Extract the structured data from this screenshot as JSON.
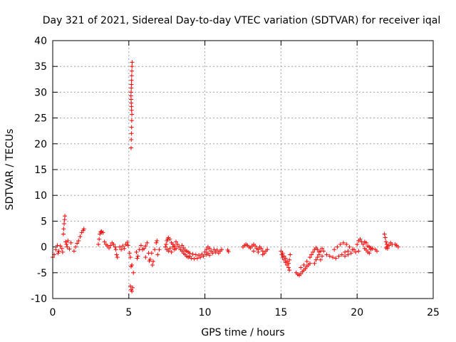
{
  "chart_data": {
    "type": "scatter",
    "title": "Day 321 of 2021, Sidereal Day-to-day VTEC variation (SDTVAR) for receiver iqal",
    "xlabel": "GPS time / hours",
    "ylabel": "SDTVAR / TECUs",
    "xlim": [
      0,
      25
    ],
    "ylim": [
      -10,
      40
    ],
    "xticks": [
      "0",
      "5",
      "10",
      "15",
      "20",
      "25"
    ],
    "yticks": [
      "-10",
      "-5",
      "0",
      "5",
      "10",
      "15",
      "20",
      "25",
      "30",
      "35",
      "40"
    ],
    "grid": true,
    "marker": "plus",
    "marker_color": "#ff0000",
    "series": [
      {
        "name": "SDTVAR",
        "points": [
          [
            0.0,
            -2.0
          ],
          [
            0.1,
            -1.5
          ],
          [
            0.2,
            -0.5
          ],
          [
            0.3,
            0.3
          ],
          [
            0.35,
            -1.2
          ],
          [
            0.4,
            -0.8
          ],
          [
            0.5,
            0.2
          ],
          [
            0.6,
            -0.3
          ],
          [
            0.65,
            -1.0
          ],
          [
            0.7,
            2.5
          ],
          [
            0.72,
            3.5
          ],
          [
            0.75,
            4.5
          ],
          [
            0.78,
            5.3
          ],
          [
            0.8,
            6.0
          ],
          [
            0.85,
            1.0
          ],
          [
            0.9,
            0.5
          ],
          [
            0.95,
            0.0
          ],
          [
            1.0,
            1.2
          ],
          [
            1.1,
            -0.4
          ],
          [
            1.2,
            0.8
          ],
          [
            1.4,
            -0.8
          ],
          [
            1.5,
            0.0
          ],
          [
            1.6,
            0.7
          ],
          [
            1.7,
            1.2
          ],
          [
            1.8,
            2.0
          ],
          [
            1.9,
            2.8
          ],
          [
            2.0,
            3.2
          ],
          [
            2.05,
            3.5
          ],
          [
            3.0,
            0.5
          ],
          [
            3.05,
            1.5
          ],
          [
            3.1,
            2.5
          ],
          [
            3.15,
            2.9
          ],
          [
            3.2,
            3.0
          ],
          [
            3.3,
            2.8
          ],
          [
            3.4,
            1.0
          ],
          [
            3.5,
            0.5
          ],
          [
            3.6,
            0.2
          ],
          [
            3.7,
            -0.2
          ],
          [
            3.8,
            0.3
          ],
          [
            3.9,
            0.8
          ],
          [
            4.0,
            0.5
          ],
          [
            4.1,
            0.0
          ],
          [
            4.15,
            -0.5
          ],
          [
            4.2,
            -1.5
          ],
          [
            4.25,
            -2.0
          ],
          [
            4.4,
            0.0
          ],
          [
            4.5,
            -0.5
          ],
          [
            4.6,
            0.2
          ],
          [
            4.7,
            -0.3
          ],
          [
            4.8,
            0.5
          ],
          [
            4.9,
            0.9
          ],
          [
            4.95,
            0.3
          ],
          [
            5.05,
            -1.2
          ],
          [
            5.1,
            -2.0
          ],
          [
            5.15,
            -3.8
          ],
          [
            5.2,
            -3.5
          ],
          [
            5.1,
            -7.6
          ],
          [
            5.15,
            -8.3
          ],
          [
            5.2,
            -8.6
          ],
          [
            5.25,
            -7.9
          ],
          [
            5.3,
            -5.0
          ],
          [
            5.15,
            19.2
          ],
          [
            5.16,
            20.8
          ],
          [
            5.17,
            22.0
          ],
          [
            5.18,
            23.2
          ],
          [
            5.19,
            24.5
          ],
          [
            5.2,
            25.7
          ],
          [
            5.18,
            26.5
          ],
          [
            5.17,
            27.2
          ],
          [
            5.16,
            27.9
          ],
          [
            5.15,
            28.6
          ],
          [
            5.14,
            29.3
          ],
          [
            5.15,
            30.0
          ],
          [
            5.16,
            30.8
          ],
          [
            5.17,
            31.5
          ],
          [
            5.18,
            32.3
          ],
          [
            5.19,
            33.2
          ],
          [
            5.2,
            34.1
          ],
          [
            5.21,
            35.0
          ],
          [
            5.22,
            35.8
          ],
          [
            5.5,
            -1.0
          ],
          [
            5.55,
            -2.2
          ],
          [
            5.6,
            -1.8
          ],
          [
            5.7,
            -0.5
          ],
          [
            5.8,
            0.3
          ],
          [
            5.9,
            -0.5
          ],
          [
            6.0,
            -0.3
          ],
          [
            6.1,
            0.2
          ],
          [
            6.2,
            0.8
          ],
          [
            6.3,
            -1.2
          ],
          [
            6.1,
            -2.0
          ],
          [
            6.35,
            -2.7
          ],
          [
            6.4,
            -2.4
          ],
          [
            6.5,
            -1.2
          ],
          [
            6.55,
            -3.5
          ],
          [
            6.6,
            -2.8
          ],
          [
            6.7,
            -0.5
          ],
          [
            6.8,
            0.8
          ],
          [
            6.85,
            1.2
          ],
          [
            6.9,
            -1.5
          ],
          [
            7.0,
            -0.5
          ],
          [
            7.4,
            0.0
          ],
          [
            7.45,
            0.5
          ],
          [
            7.5,
            1.2
          ],
          [
            7.55,
            1.5
          ],
          [
            7.6,
            1.8
          ],
          [
            7.7,
            1.5
          ],
          [
            7.8,
            0.8
          ],
          [
            7.9,
            0.5
          ],
          [
            8.0,
            0.2
          ],
          [
            8.1,
            -0.3
          ],
          [
            7.5,
            -0.5
          ],
          [
            7.6,
            -0.8
          ],
          [
            7.7,
            -0.3
          ],
          [
            7.8,
            -1.0
          ],
          [
            7.9,
            0.0
          ],
          [
            8.0,
            -0.5
          ],
          [
            8.1,
            1.0
          ],
          [
            8.2,
            0.5
          ],
          [
            8.3,
            0.0
          ],
          [
            8.4,
            -0.5
          ],
          [
            8.5,
            -0.8
          ],
          [
            8.6,
            -1.2
          ],
          [
            8.7,
            -1.5
          ],
          [
            8.8,
            -1.8
          ],
          [
            8.9,
            -2.0
          ],
          [
            9.0,
            -1.8
          ],
          [
            8.5,
            0.3
          ],
          [
            8.6,
            -0.2
          ],
          [
            8.7,
            -0.6
          ],
          [
            8.8,
            -0.8
          ],
          [
            8.9,
            -1.0
          ],
          [
            9.0,
            -1.2
          ],
          [
            9.2,
            -1.4
          ],
          [
            9.4,
            -1.5
          ],
          [
            9.6,
            -1.6
          ],
          [
            9.8,
            -1.4
          ],
          [
            9.1,
            -2.2
          ],
          [
            9.3,
            -2.3
          ],
          [
            9.5,
            -2.2
          ],
          [
            9.7,
            -2.0
          ],
          [
            9.9,
            -1.8
          ],
          [
            10.0,
            -1.0
          ],
          [
            10.1,
            -0.5
          ],
          [
            10.2,
            0.0
          ],
          [
            10.3,
            -0.3
          ],
          [
            10.4,
            -0.8
          ],
          [
            10.1,
            -1.5
          ],
          [
            10.2,
            -1.2
          ],
          [
            10.3,
            -1.6
          ],
          [
            10.5,
            -1.2
          ],
          [
            10.6,
            -0.5
          ],
          [
            10.7,
            -1.0
          ],
          [
            10.8,
            -0.6
          ],
          [
            10.9,
            -1.2
          ],
          [
            11.0,
            -0.8
          ],
          [
            11.1,
            -0.5
          ],
          [
            11.5,
            -0.6
          ],
          [
            11.55,
            -0.9
          ],
          [
            12.5,
            0.0
          ],
          [
            12.6,
            0.3
          ],
          [
            12.7,
            0.5
          ],
          [
            12.8,
            0.3
          ],
          [
            12.9,
            0.0
          ],
          [
            13.0,
            -0.2
          ],
          [
            13.1,
            0.2
          ],
          [
            13.2,
            0.5
          ],
          [
            13.3,
            0.2
          ],
          [
            13.4,
            -0.3
          ],
          [
            13.5,
            -0.5
          ],
          [
            13.6,
            0.0
          ],
          [
            13.7,
            -0.3
          ],
          [
            13.8,
            -0.8
          ],
          [
            13.9,
            -1.2
          ],
          [
            14.0,
            -0.8
          ],
          [
            14.1,
            -0.5
          ],
          [
            13.2,
            -0.8
          ],
          [
            13.5,
            -1.0
          ],
          [
            13.8,
            -1.5
          ],
          [
            15.0,
            -0.8
          ],
          [
            15.05,
            -1.5
          ],
          [
            15.1,
            -2.0
          ],
          [
            15.2,
            -2.5
          ],
          [
            15.3,
            -3.0
          ],
          [
            15.4,
            -3.5
          ],
          [
            15.5,
            -4.0
          ],
          [
            15.55,
            -4.5
          ],
          [
            15.1,
            -1.2
          ],
          [
            15.2,
            -1.8
          ],
          [
            15.3,
            -2.2
          ],
          [
            15.4,
            -2.8
          ],
          [
            15.5,
            -3.2
          ],
          [
            15.55,
            -2.5
          ],
          [
            15.6,
            -1.5
          ],
          [
            16.0,
            -5.0
          ],
          [
            16.1,
            -5.3
          ],
          [
            16.2,
            -5.5
          ],
          [
            16.3,
            -5.2
          ],
          [
            16.4,
            -4.8
          ],
          [
            16.5,
            -4.5
          ],
          [
            16.6,
            -4.2
          ],
          [
            16.7,
            -3.8
          ],
          [
            16.8,
            -3.5
          ],
          [
            16.9,
            -3.2
          ],
          [
            16.3,
            -4.0
          ],
          [
            16.5,
            -3.5
          ],
          [
            16.7,
            -2.8
          ],
          [
            16.9,
            -2.0
          ],
          [
            17.0,
            -1.5
          ],
          [
            17.1,
            -1.0
          ],
          [
            17.2,
            -0.5
          ],
          [
            17.3,
            -0.2
          ],
          [
            17.4,
            -0.5
          ],
          [
            17.5,
            -1.0
          ],
          [
            17.2,
            -3.2
          ],
          [
            17.3,
            -2.5
          ],
          [
            17.4,
            -2.0
          ],
          [
            17.5,
            -1.5
          ],
          [
            17.6,
            -0.8
          ],
          [
            17.7,
            -0.3
          ],
          [
            17.8,
            -0.8
          ],
          [
            17.6,
            -2.5
          ],
          [
            17.7,
            -1.8
          ],
          [
            18.0,
            -1.5
          ],
          [
            18.2,
            -1.8
          ],
          [
            18.4,
            -2.0
          ],
          [
            18.6,
            -2.2
          ],
          [
            18.8,
            -1.8
          ],
          [
            19.0,
            -1.5
          ],
          [
            19.2,
            -1.0
          ],
          [
            19.4,
            -0.8
          ],
          [
            18.5,
            -0.5
          ],
          [
            18.7,
            0.0
          ],
          [
            18.9,
            0.5
          ],
          [
            19.1,
            0.8
          ],
          [
            19.3,
            0.5
          ],
          [
            19.5,
            0.0
          ],
          [
            19.7,
            -0.5
          ],
          [
            19.9,
            -1.0
          ],
          [
            20.1,
            -0.8
          ],
          [
            19.2,
            -1.8
          ],
          [
            19.4,
            -1.5
          ],
          [
            19.6,
            -1.2
          ],
          [
            19.8,
            -0.5
          ],
          [
            20.0,
            0.5
          ],
          [
            20.1,
            1.2
          ],
          [
            20.2,
            1.5
          ],
          [
            20.3,
            1.0
          ],
          [
            20.4,
            0.5
          ],
          [
            20.5,
            1.0
          ],
          [
            20.6,
            0.8
          ],
          [
            20.7,
            0.2
          ],
          [
            20.8,
            0.0
          ],
          [
            20.9,
            -0.5
          ],
          [
            21.0,
            -0.3
          ],
          [
            21.2,
            -0.5
          ],
          [
            21.3,
            -0.8
          ],
          [
            20.5,
            -0.3
          ],
          [
            20.6,
            -0.6
          ],
          [
            20.7,
            -1.0
          ],
          [
            20.8,
            -1.2
          ],
          [
            20.9,
            -0.2
          ],
          [
            21.8,
            2.5
          ],
          [
            21.85,
            1.8
          ],
          [
            21.9,
            1.0
          ],
          [
            21.95,
            0.5
          ],
          [
            22.0,
            0.0
          ],
          [
            22.1,
            0.3
          ],
          [
            22.2,
            0.8
          ],
          [
            22.3,
            0.5
          ],
          [
            22.0,
            -0.3
          ],
          [
            21.9,
            -0.2
          ],
          [
            22.5,
            0.5
          ],
          [
            22.6,
            0.3
          ],
          [
            22.7,
            0.0
          ]
        ]
      }
    ]
  }
}
